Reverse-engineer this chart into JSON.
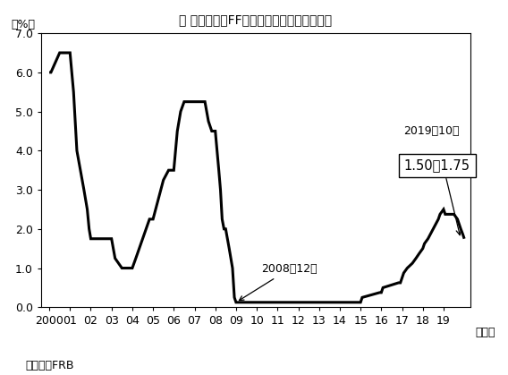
{
  "title": "図 政策金利（FFレート）の誘導目標の推移",
  "ylabel": "（%）",
  "xlabel": "（年）",
  "source": "（出所）FRB",
  "ylim": [
    0.0,
    7.0
  ],
  "yticks": [
    0.0,
    1.0,
    2.0,
    3.0,
    4.0,
    5.0,
    6.0,
    7.0
  ],
  "annotation1_label": "2008年12月",
  "annotation2_label": "2019年10月",
  "annotation2_box": "1.50～1.75",
  "line_color": "#000000",
  "line_width": 2.2,
  "background_color": "#ffffff",
  "x_data": [
    2000.0,
    2000.08,
    2000.5,
    2001.0,
    2001.17,
    2001.33,
    2001.5,
    2001.67,
    2001.83,
    2001.92,
    2002.0,
    2002.5,
    2003.0,
    2003.17,
    2003.5,
    2004.0,
    2004.17,
    2004.5,
    2004.83,
    2005.0,
    2005.25,
    2005.5,
    2005.75,
    2006.0,
    2006.17,
    2006.33,
    2006.5,
    2007.0,
    2007.5,
    2007.67,
    2007.83,
    2008.0,
    2008.17,
    2008.25,
    2008.33,
    2008.42,
    2008.5,
    2008.67,
    2008.83,
    2008.92,
    2009.0,
    2009.5,
    2010.0,
    2015.0,
    2015.08,
    2015.92,
    2016.0,
    2016.08,
    2016.83,
    2016.92,
    2017.0,
    2017.08,
    2017.25,
    2017.5,
    2017.67,
    2017.83,
    2018.0,
    2018.08,
    2018.25,
    2018.5,
    2018.75,
    2018.83,
    2019.0,
    2019.08,
    2019.5,
    2019.67,
    2019.83,
    2019.92,
    2020.0
  ],
  "y_data": [
    6.0,
    6.0,
    6.5,
    6.5,
    5.5,
    4.0,
    3.5,
    3.0,
    2.5,
    2.0,
    1.75,
    1.75,
    1.75,
    1.25,
    1.0,
    1.0,
    1.25,
    1.75,
    2.25,
    2.25,
    2.75,
    3.25,
    3.5,
    3.5,
    4.5,
    5.0,
    5.25,
    5.25,
    5.25,
    4.75,
    4.5,
    4.5,
    3.5,
    3.0,
    2.25,
    2.0,
    2.0,
    1.5,
    1.0,
    0.25,
    0.125,
    0.125,
    0.125,
    0.125,
    0.25,
    0.375,
    0.375,
    0.5,
    0.625,
    0.625,
    0.75,
    0.875,
    1.0,
    1.125,
    1.25,
    1.375,
    1.5,
    1.625,
    1.75,
    2.0,
    2.25,
    2.375,
    2.5,
    2.375,
    2.375,
    2.25,
    2.0,
    1.875,
    1.75
  ],
  "xtick_positions": [
    2000,
    2001,
    2002,
    2003,
    2004,
    2005,
    2006,
    2007,
    2008,
    2009,
    2010,
    2011,
    2012,
    2013,
    2014,
    2015,
    2016,
    2017,
    2018,
    2019
  ],
  "xtick_labels": [
    "2000",
    "01",
    "02",
    "03",
    "04",
    "05",
    "06",
    "07",
    "08",
    "09",
    "10",
    "11",
    "12",
    "13",
    "14",
    "15",
    "16",
    "17",
    "18",
    "19"
  ]
}
